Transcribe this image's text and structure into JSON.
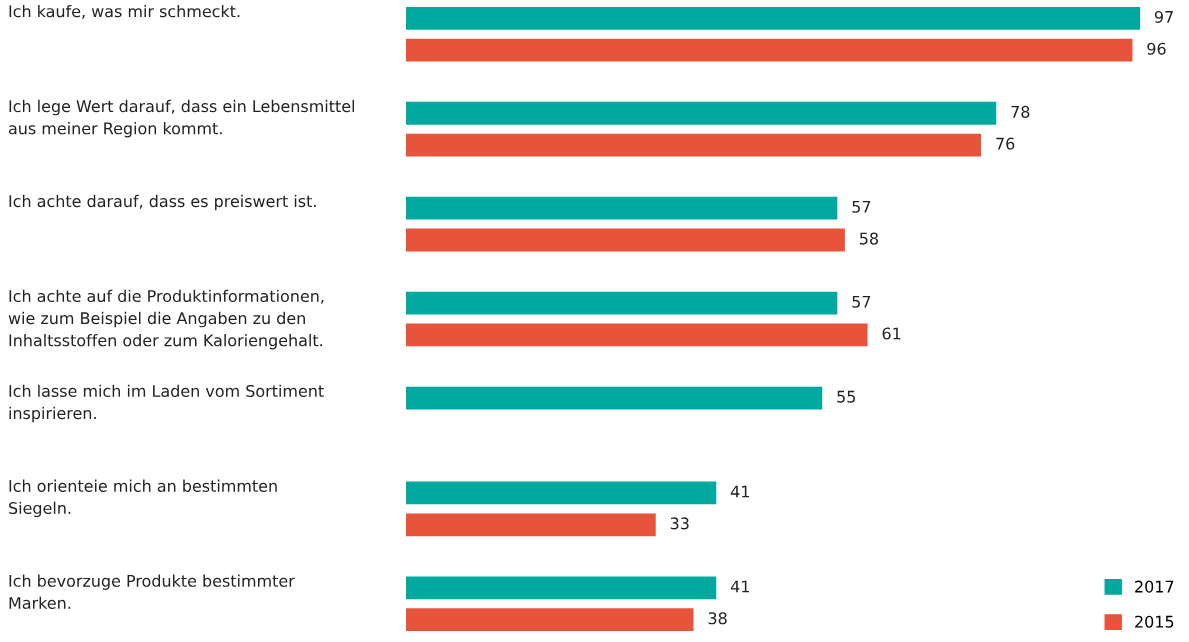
{
  "chart_data": {
    "type": "bar",
    "orientation": "horizontal",
    "categories": [
      "Ich kaufe, was mir schmeckt.",
      "Ich lege Wert darauf, dass ein Lebensmittel\naus meiner Region kommt.",
      "Ich achte darauf, dass es preiswert ist.",
      "Ich achte auf die Produktinformationen,\nwie zum Beispiel die Angaben zu den\nInhaltsstoffen oder zum Kaloriengehalt.",
      "Ich lasse mich im Laden vom Sortiment\ninspirieren.",
      "Ich orienteie mich an bestimmten\nSiegeln.",
      "Ich bevorzuge Produkte bestimmter\nMarken."
    ],
    "series": [
      {
        "name": "2017",
        "color": "#00a99d",
        "values": [
          97,
          78,
          57,
          57,
          55,
          41,
          41
        ]
      },
      {
        "name": "2015",
        "color": "#e8533c",
        "values": [
          96,
          76,
          58,
          61,
          null,
          33,
          38
        ]
      }
    ],
    "data_labels": true,
    "legend": "bottom right"
  }
}
